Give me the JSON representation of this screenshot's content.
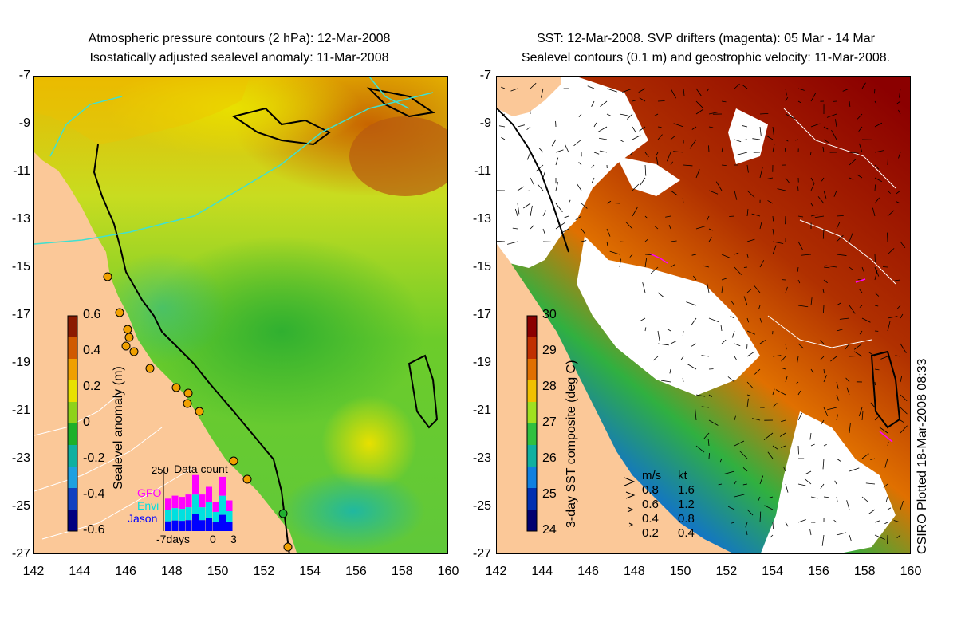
{
  "left_panel": {
    "title_line1": "Atmospheric pressure contours (2 hPa): 12-Mar-2008",
    "title_line2": "Isostatically adjusted sealevel anomaly: 11-Mar-2008",
    "colorbar": {
      "label": "Sealevel anomaly (m)",
      "ticks": [
        "0.6",
        "0.4",
        "0.2",
        "0",
        "-0.2",
        "-0.4",
        "-0.6"
      ],
      "colors": [
        "#8b1a00",
        "#d05a00",
        "#f0a000",
        "#e8e000",
        "#8ed21a",
        "#1db02a",
        "#10b0a0",
        "#1ea0e0",
        "#1040c0",
        "#000080"
      ]
    },
    "data_count": {
      "title": "Data count",
      "ymax_label": "250",
      "legend": [
        {
          "name": "GFO",
          "color": "#ff00ff"
        },
        {
          "name": "Envi",
          "color": "#00e0e0"
        },
        {
          "name": "Jason",
          "color": "#0000ff"
        }
      ],
      "xlabels": [
        "-7days",
        "0",
        "3"
      ],
      "bars_fraction": [
        0.55,
        0.6,
        0.58,
        0.62,
        0.95,
        0.62,
        0.75,
        0.5,
        0.92,
        0.52
      ]
    }
  },
  "right_panel": {
    "title_line1": "SST: 12-Mar-2008. SVP drifters (magenta): 05 Mar - 14 Mar",
    "title_line2": "Sealevel contours (0.1 m) and geostrophic velocity: 11-Mar-2008.",
    "colorbar": {
      "label": "3-day SST composite (deg C)",
      "ticks": [
        "30",
        "29",
        "28",
        "27",
        "26",
        "25",
        "24"
      ],
      "colors": [
        "#8b0000",
        "#c03000",
        "#e07000",
        "#f0c000",
        "#a0e020",
        "#30c040",
        "#10b0a0",
        "#1080e0",
        "#0030b0",
        "#000070"
      ]
    },
    "velocity_legend": {
      "header_ms": "m/s",
      "header_kt": "kt",
      "rows": [
        {
          "ms": "0.8",
          "kt": "1.6"
        },
        {
          "ms": "0.6",
          "kt": "1.2"
        },
        {
          "ms": "0.4",
          "kt": "0.8"
        },
        {
          "ms": "0.2",
          "kt": "0.4"
        }
      ]
    }
  },
  "axes": {
    "y_ticks": [
      "-7",
      "-9",
      "-11",
      "-13",
      "-15",
      "-17",
      "-19",
      "-21",
      "-23",
      "-25",
      "-27"
    ],
    "x_ticks": [
      "142",
      "144",
      "146",
      "148",
      "150",
      "152",
      "154",
      "156",
      "158",
      "160"
    ]
  },
  "footer": {
    "plotted": "CSIRO Plotted 18-Mar-2008 08:33"
  },
  "colors": {
    "land": "#fbc898",
    "contour_cyan": "#40e0d0"
  }
}
